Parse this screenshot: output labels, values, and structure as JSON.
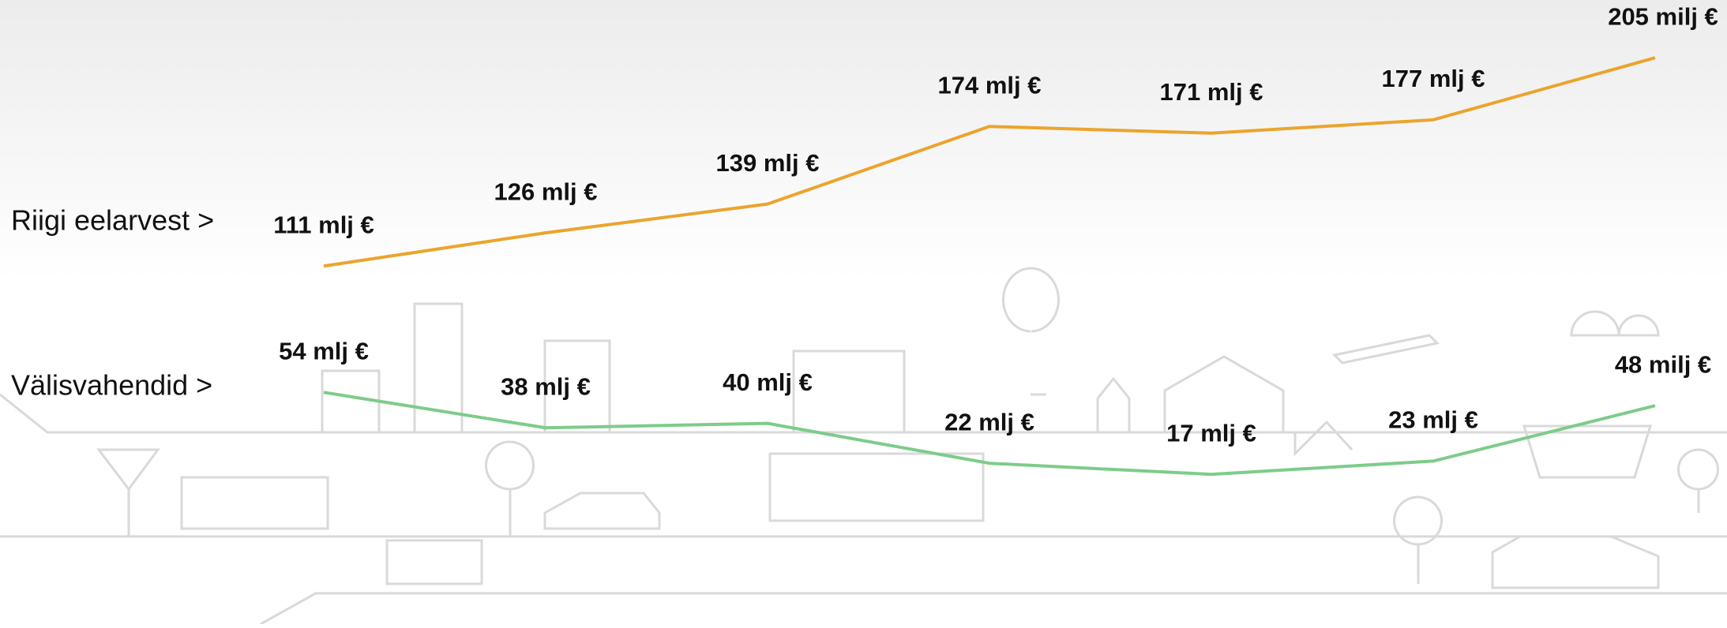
{
  "chart_data": {
    "type": "line",
    "ylim": [
      0,
      230
    ],
    "series": [
      {
        "name": "Riigi eelarvest >",
        "color": "#eba42c",
        "values": [
          111,
          126,
          139,
          174,
          171,
          177,
          205
        ],
        "value_labels": [
          "111 mlj €",
          "126 mlj €",
          "139 mlj €",
          "174 mlj €",
          "171 mlj €",
          "177 mlj €",
          "205 milj €"
        ]
      },
      {
        "name": "Välisvahendid >",
        "color": "#7dcc8a",
        "values": [
          54,
          38,
          40,
          22,
          17,
          23,
          48
        ],
        "value_labels": [
          "54 mlj €",
          "38 mlj €",
          "40 mlj €",
          "22 mlj €",
          "17 mlj €",
          "23 mlj €",
          "48 milj €"
        ]
      }
    ]
  }
}
